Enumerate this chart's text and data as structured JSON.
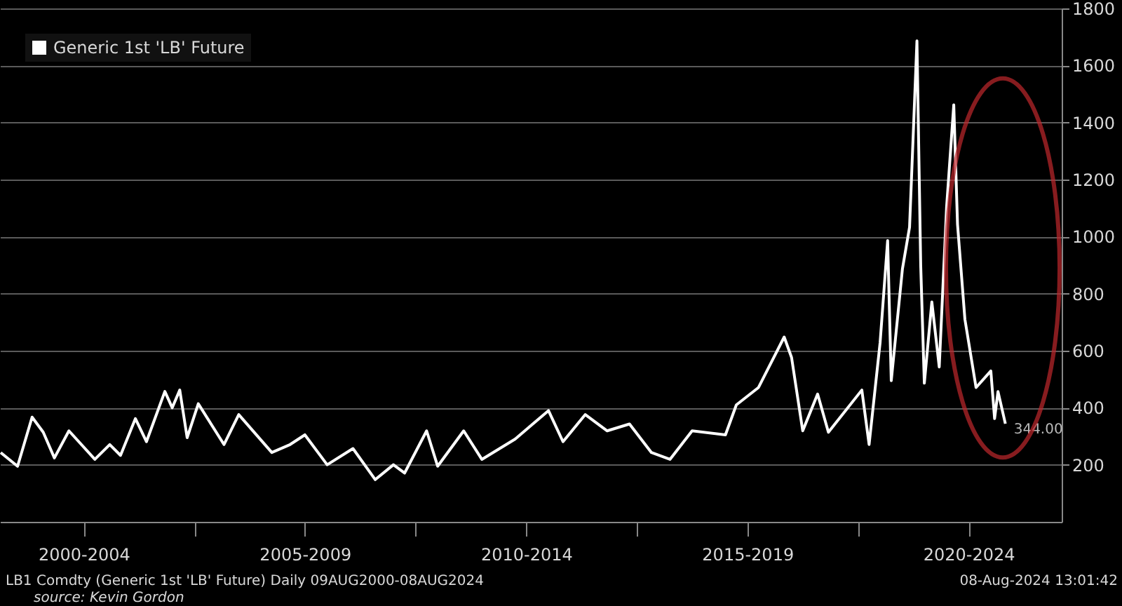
{
  "chart_data": {
    "type": "line",
    "legend": "top left",
    "grid": "y",
    "marker": "none",
    "line_style": "solid",
    "xlim": [
      "2000-08-09",
      "2024-08-08"
    ],
    "ylim": [
      0,
      1800
    ],
    "yticks": [
      200,
      400,
      600,
      800,
      1000,
      1200,
      1400,
      1600,
      1800
    ],
    "xticks": [
      {
        "value": "2002-07-01",
        "label": "2000-2004"
      },
      {
        "value": "2005-01-01",
        "label": null
      },
      {
        "value": "2007-07-01",
        "label": "2005-2009"
      },
      {
        "value": "2010-01-01",
        "label": null
      },
      {
        "value": "2012-07-01",
        "label": "2010-2014"
      },
      {
        "value": "2015-01-01",
        "label": null
      },
      {
        "value": "2017-07-01",
        "label": "2015-2019"
      },
      {
        "value": "2020-01-01",
        "label": null
      },
      {
        "value": "2022-07-01",
        "label": "2020-2024"
      }
    ],
    "annotations": [
      {
        "text": "344.00",
        "x": "2023-05",
        "y": 344
      },
      "LB1 Comdty (Generic 1st 'LB' Future)  Daily 09AUG2000-08AUG2024",
      "08-Aug-2024 13:01:42",
      "source: Kevin Gordon"
    ],
    "x": [
      "2000-08-15",
      "2001-01",
      "2001-05",
      "2001-08",
      "2001-11",
      "2002-03",
      "2002-10",
      "2003-02",
      "2003-05",
      "2003-09",
      "2003-12",
      "2004-05",
      "2004-07",
      "2004-09",
      "2004-11",
      "2005-02",
      "2005-09",
      "2006-01",
      "2006-10",
      "2007-03",
      "2007-07",
      "2008-01",
      "2008-08",
      "2009-02",
      "2009-07",
      "2009-10",
      "2010-04",
      "2010-07",
      "2011-02",
      "2011-07",
      "2012-04",
      "2013-01",
      "2013-05",
      "2013-11",
      "2014-05",
      "2014-11",
      "2015-05",
      "2015-10",
      "2016-04",
      "2017-01",
      "2017-04",
      "2017-10",
      "2018-05",
      "2018-07",
      "2018-10",
      "2019-02",
      "2019-05",
      "2020-02",
      "2020-04",
      "2020-07",
      "2020-09",
      "2020-10",
      "2021-01",
      "2021-03",
      "2021-05",
      "2021-06",
      "2021-07",
      "2021-09",
      "2021-11",
      "2022-01",
      "2022-03",
      "2022-04",
      "2022-06",
      "2022-09",
      "2023-01",
      "2023-02",
      "2023-03",
      "2023-05"
    ],
    "series": [
      {
        "name": "Generic 1st 'LB' Future",
        "color": "#ffffff",
        "values": [
          243,
          195,
          367,
          314,
          224,
          319,
          219,
          271,
          233,
          362,
          281,
          457,
          400,
          462,
          295,
          414,
          271,
          376,
          243,
          271,
          305,
          200,
          257,
          148,
          200,
          171,
          319,
          195,
          319,
          219,
          290,
          390,
          281,
          376,
          319,
          343,
          243,
          219,
          319,
          305,
          410,
          471,
          648,
          576,
          319,
          448,
          314,
          462,
          271,
          629,
          986,
          495,
          886,
          1033,
          1686,
          900,
          486,
          771,
          543,
          1105,
          1462,
          1043,
          710,
          471,
          529,
          362,
          457,
          344
        ]
      }
    ]
  }
}
